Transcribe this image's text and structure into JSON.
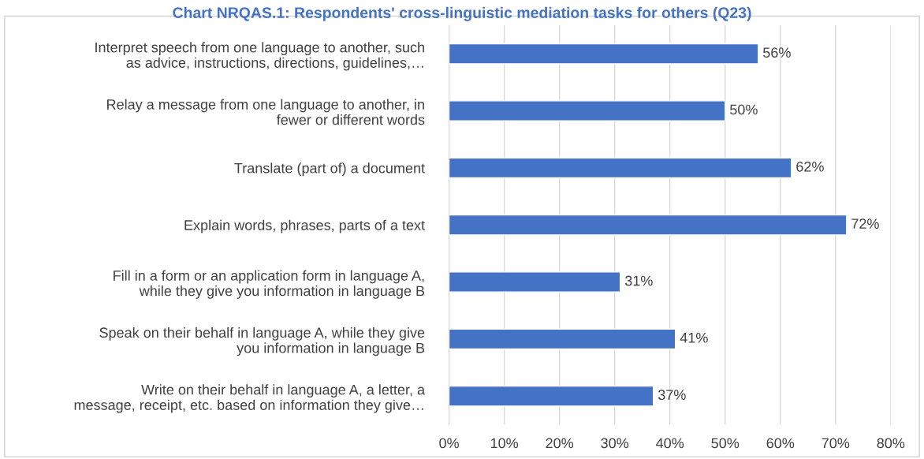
{
  "chart_data": {
    "type": "bar",
    "orientation": "horizontal",
    "title": "Chart NRQAS.1: Respondents' cross-linguistic mediation tasks for others (Q23)",
    "categories": [
      "Interpret speech from one language to another, such\nas advice, instructions, directions, guidelines,…",
      "Relay a message from one language to another, in\nfewer or different words",
      "Translate (part of) a document",
      "Explain words, phrases, parts of a text",
      "Fill in a form or an application form in language A,\nwhile they give you information in language B",
      "Speak on their behalf in language A, while they give\nyou information in language B",
      "Write on their behalf in language A, a letter, a\nmessage, receipt, etc. based on information they give…"
    ],
    "values": [
      56,
      50,
      62,
      72,
      31,
      41,
      37
    ],
    "value_labels": [
      "56%",
      "50%",
      "62%",
      "72%",
      "31%",
      "41%",
      "37%"
    ],
    "color": "#4472c4",
    "xlim": [
      0,
      80
    ],
    "xticks": [
      {
        "value": 0,
        "label": "0%"
      },
      {
        "value": 10,
        "label": "10%"
      },
      {
        "value": 20,
        "label": "20%"
      },
      {
        "value": 30,
        "label": "30%"
      },
      {
        "value": 40,
        "label": "40%"
      },
      {
        "value": 50,
        "label": "50%"
      },
      {
        "value": 60,
        "label": "60%"
      },
      {
        "value": 70,
        "label": "70%"
      },
      {
        "value": 80,
        "label": "80%"
      }
    ],
    "grid": "x",
    "legend": false
  }
}
